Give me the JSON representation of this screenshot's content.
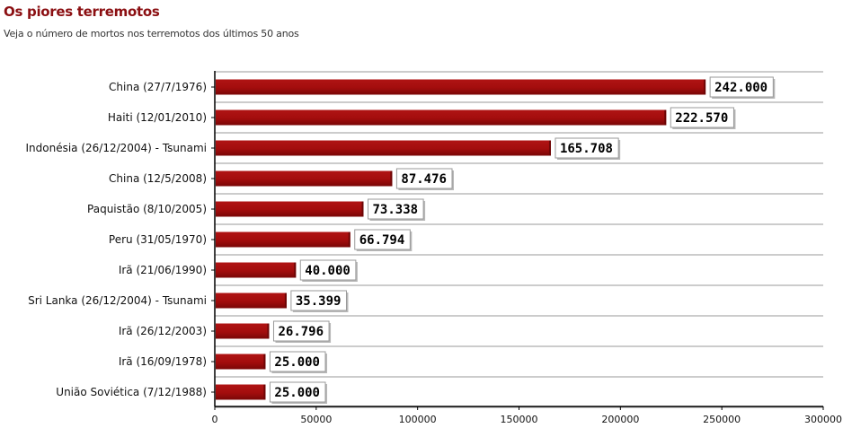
{
  "colors": {
    "title": "#8b0f12",
    "bar": "#a30d0d",
    "bar_dark": "#6e0606",
    "grid": "#9a9a9a",
    "axis": "#000000"
  },
  "chart_data": {
    "type": "bar",
    "orientation": "horizontal",
    "title": "Os piores terremotos",
    "subtitle": "Veja o número de mortos nos terremotos dos últimos 50 anos",
    "xlabel": "",
    "ylabel": "",
    "xlim": [
      0,
      300000
    ],
    "xticks": [
      0,
      50000,
      100000,
      150000,
      200000,
      250000,
      300000
    ],
    "xtick_labels": [
      "0",
      "50000",
      "100000",
      "150000",
      "200000",
      "250000",
      "300000"
    ],
    "grid": true,
    "categories": [
      "China (27/7/1976)",
      "Haiti (12/01/2010)",
      "Indonésia (26/12/2004) - Tsunami",
      "China (12/5/2008)",
      "Paquistão (8/10/2005)",
      "Peru (31/05/1970)",
      "Irã (21/06/1990)",
      "Sri Lanka (26/12/2004) - Tsunami",
      "Irã (26/12/2003)",
      "Irã (16/09/1978)",
      "União Soviética (7/12/1988)"
    ],
    "values": [
      242000,
      222570,
      165708,
      87476,
      73338,
      66794,
      40000,
      35399,
      26796,
      25000,
      25000
    ],
    "value_labels": [
      "242.000",
      "222.570",
      "165.708",
      "87.476",
      "73.338",
      "66.794",
      "40.000",
      "35.399",
      "26.796",
      "25.000",
      "25.000"
    ]
  }
}
